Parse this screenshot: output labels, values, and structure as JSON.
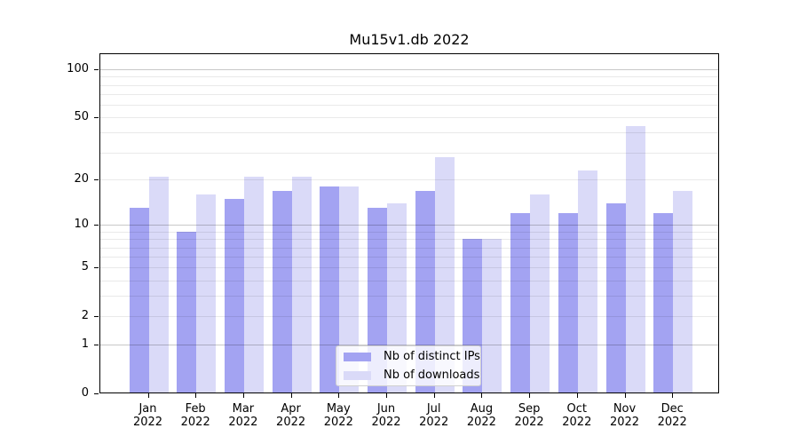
{
  "title": "Mu15v1.db 2022",
  "chart_data": {
    "type": "bar",
    "title": "Mu15v1.db 2022",
    "categories": [
      "Jan",
      "Feb",
      "Mar",
      "Apr",
      "May",
      "Jun",
      "Jul",
      "Aug",
      "Sep",
      "Oct",
      "Nov",
      "Dec"
    ],
    "year_label": "2022",
    "series": [
      {
        "name": "Nb of distinct IPs",
        "color": "#a3a3f2",
        "values": [
          13,
          9,
          15,
          17,
          18,
          13,
          17,
          8,
          12,
          12,
          14,
          12
        ]
      },
      {
        "name": "Nb of downloads",
        "color": "#dadaf8",
        "values": [
          21,
          16,
          21,
          21,
          18,
          14,
          28,
          8,
          16,
          23,
          44,
          17
        ]
      }
    ],
    "yscale": "log(1+x)",
    "ylim": [
      0,
      126
    ],
    "yticks": [
      0,
      1,
      2,
      5,
      10,
      20,
      50,
      100
    ],
    "ytick_labels": [
      "0",
      "1",
      "2",
      "5",
      "10",
      "20",
      "50",
      "100"
    ],
    "major_gridline_values": [
      1,
      10,
      100
    ],
    "minor_gridline_values": [
      2,
      3,
      4,
      5,
      6,
      7,
      8,
      9,
      20,
      30,
      40,
      50,
      60,
      70,
      80,
      90
    ],
    "grid": true,
    "legend": {
      "position": "lower center",
      "entries": [
        "Nb of distinct IPs",
        "Nb of downloads"
      ]
    }
  },
  "colors": {
    "background": "#ffffff",
    "axis": "#000000",
    "major_grid": "#c9c9c9",
    "minor_grid": "#ebebeb",
    "series_dark": "#a3a3f2",
    "series_light": "#dadaf8"
  }
}
